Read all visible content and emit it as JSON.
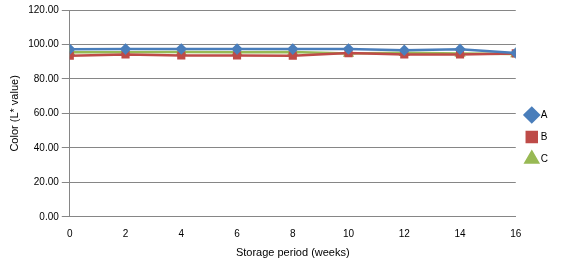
{
  "chart_data": {
    "type": "line",
    "x_label": "Storage period (weeks)",
    "y_label": "Color (L* value)",
    "categories": [
      "0",
      "2",
      "4",
      "6",
      "8",
      "10",
      "12",
      "14",
      "16"
    ],
    "series": [
      {
        "name": "A",
        "color": "#4a7ebb",
        "marker": "diamond",
        "values": [
          97.2,
          97.3,
          97.4,
          97.3,
          97.3,
          97.4,
          96.6,
          97.2,
          95.0
        ]
      },
      {
        "name": "B",
        "color": "#be4b48",
        "marker": "square",
        "values": [
          93.5,
          94.2,
          93.6,
          93.6,
          93.5,
          95.0,
          94.2,
          94.2,
          94.8
        ]
      },
      {
        "name": "C",
        "color": "#98b954",
        "marker": "triangle",
        "values": [
          95.5,
          95.5,
          95.6,
          95.5,
          95.6,
          94.8,
          95.2,
          94.8,
          94.4
        ]
      }
    ],
    "ylim": [
      0,
      120
    ],
    "yticks": [
      {
        "value": 0,
        "label": "0.00"
      },
      {
        "value": 20,
        "label": "20.00"
      },
      {
        "value": 40,
        "label": "40.00"
      },
      {
        "value": 60,
        "label": "60.00"
      },
      {
        "value": 80,
        "label": "80.00"
      },
      {
        "value": 100,
        "label": "100.00"
      },
      {
        "value": 120,
        "label": "120.00"
      }
    ],
    "grid": true,
    "legend": "right"
  }
}
